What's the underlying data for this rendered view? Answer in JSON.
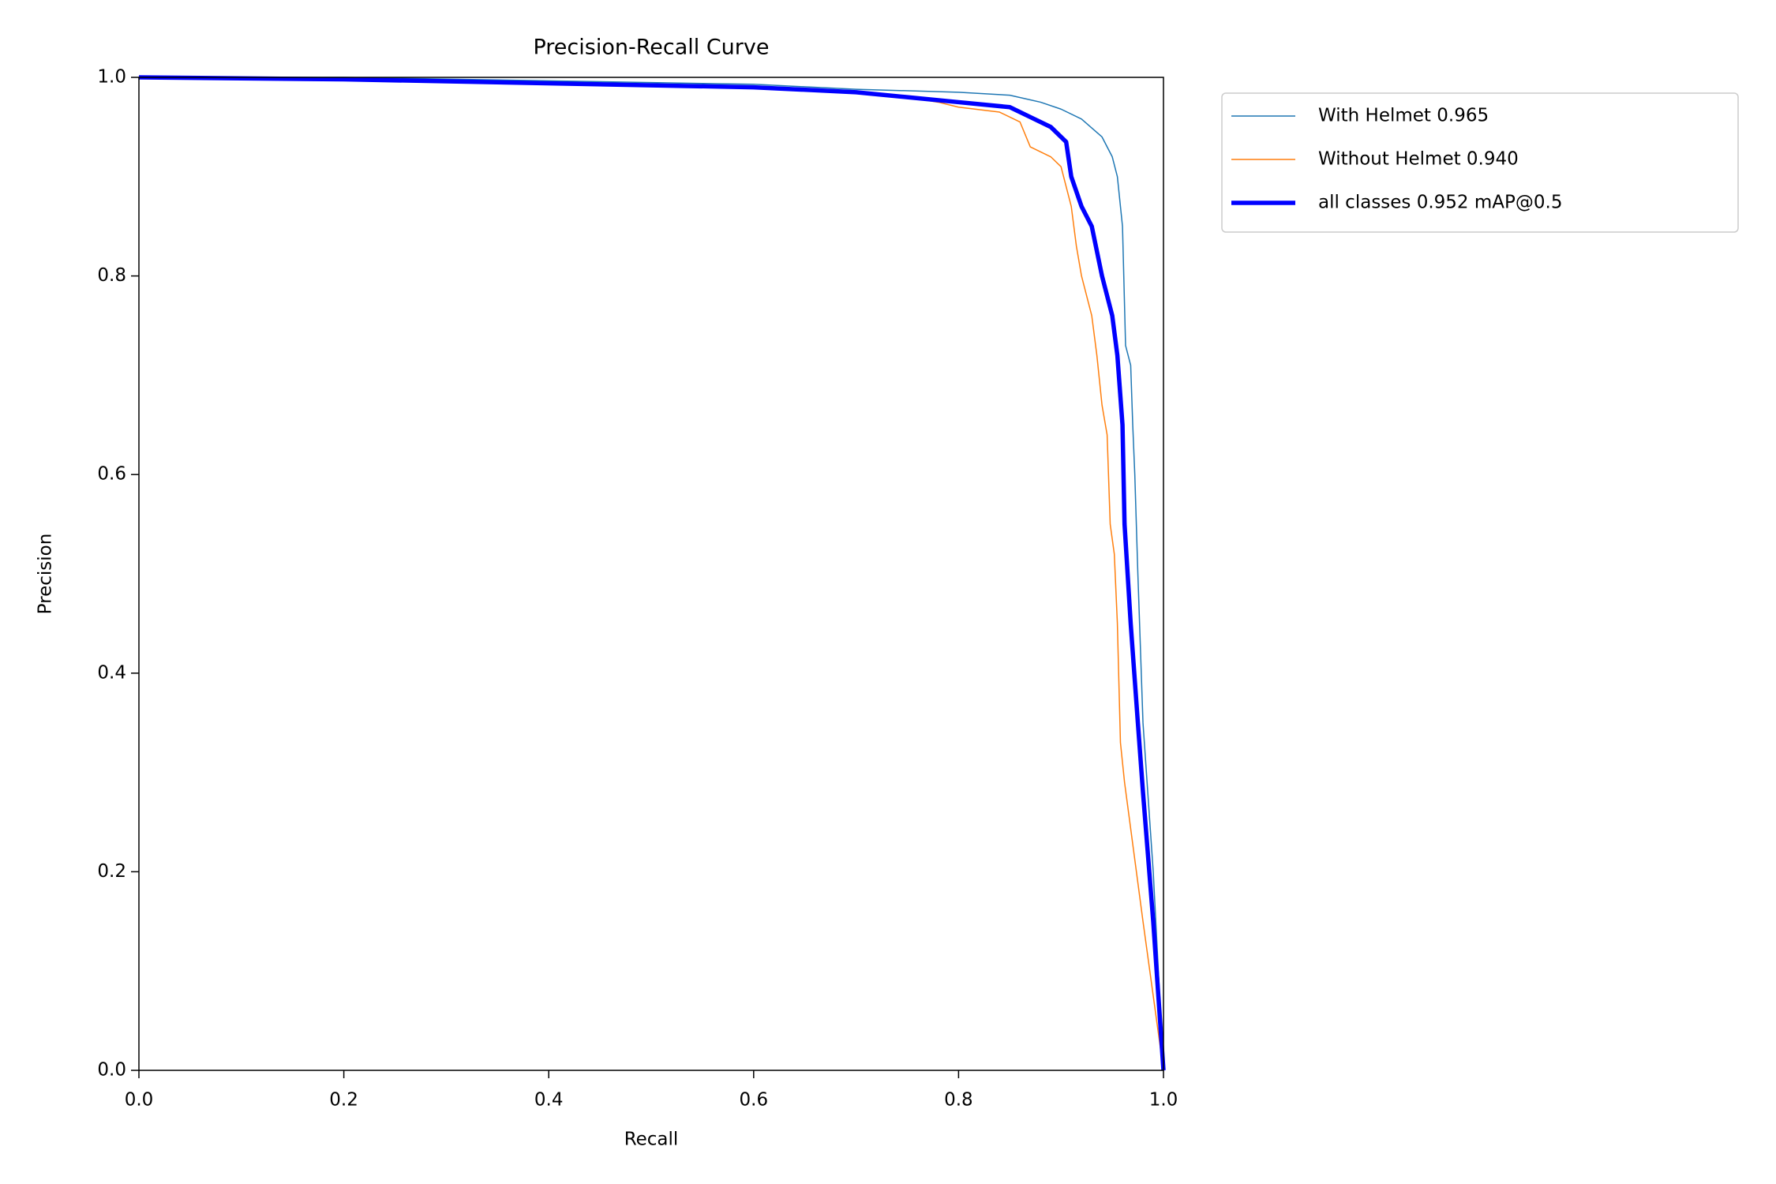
{
  "chart_data": {
    "type": "line",
    "title": "Precision-Recall Curve",
    "x_label": "Recall",
    "y_label": "Precision",
    "xlim": [
      0,
      1
    ],
    "ylim": [
      0,
      1
    ],
    "xticks": [
      {
        "value": 0,
        "label": "0.0"
      },
      0.2,
      0.4,
      0.6,
      0.8,
      {
        "value": 1,
        "label": "1.0"
      }
    ],
    "yticks": [
      {
        "value": 0,
        "label": "0.0"
      },
      0.2,
      0.4,
      0.6,
      0.8,
      {
        "value": 1,
        "label": "1.0"
      }
    ],
    "legend": "upper right outside",
    "series": [
      {
        "name": "With Helmet 0.965",
        "color": "#1f77b4",
        "width": 1.5,
        "x": [
          0,
          0.2,
          0.6,
          0.7,
          0.8,
          0.85,
          0.88,
          0.9,
          0.92,
          0.94,
          0.95,
          0.955,
          0.96,
          0.963,
          0.968,
          0.97,
          0.972,
          0.975,
          0.98,
          0.99,
          1.0
        ],
        "values": [
          1,
          1.0,
          0.993,
          0.988,
          0.985,
          0.982,
          0.975,
          0.968,
          0.958,
          0.94,
          0.92,
          0.9,
          0.85,
          0.73,
          0.71,
          0.65,
          0.6,
          0.5,
          0.35,
          0.2,
          0
        ]
      },
      {
        "name": "Without Helmet 0.940",
        "color": "#ff7f0e",
        "width": 1.5,
        "x": [
          0,
          0.3,
          0.6,
          0.7,
          0.75,
          0.78,
          0.8,
          0.84,
          0.86,
          0.87,
          0.89,
          0.9,
          0.91,
          0.915,
          0.92,
          0.93,
          0.935,
          0.94,
          0.945,
          0.948,
          0.952,
          0.955,
          0.958,
          0.962,
          0.98,
          1.0
        ],
        "values": [
          1,
          0.997,
          0.99,
          0.985,
          0.98,
          0.975,
          0.97,
          0.965,
          0.955,
          0.93,
          0.92,
          0.91,
          0.87,
          0.83,
          0.8,
          0.76,
          0.72,
          0.67,
          0.64,
          0.55,
          0.52,
          0.45,
          0.33,
          0.29,
          0.15,
          0
        ]
      },
      {
        "name": "all classes 0.952 mAP@0.5",
        "color": "#0000ff",
        "width": 5.5,
        "x": [
          0,
          0.2,
          0.6,
          0.7,
          0.75,
          0.8,
          0.85,
          0.87,
          0.89,
          0.905,
          0.91,
          0.92,
          0.93,
          0.94,
          0.95,
          0.955,
          0.96,
          0.962,
          0.965,
          0.968,
          0.975,
          0.98,
          0.99,
          1.0
        ],
        "values": [
          1,
          0.998,
          0.99,
          0.985,
          0.98,
          0.975,
          0.97,
          0.96,
          0.95,
          0.935,
          0.9,
          0.87,
          0.85,
          0.8,
          0.76,
          0.72,
          0.65,
          0.55,
          0.5,
          0.45,
          0.35,
          0.28,
          0.15,
          0
        ]
      }
    ]
  }
}
